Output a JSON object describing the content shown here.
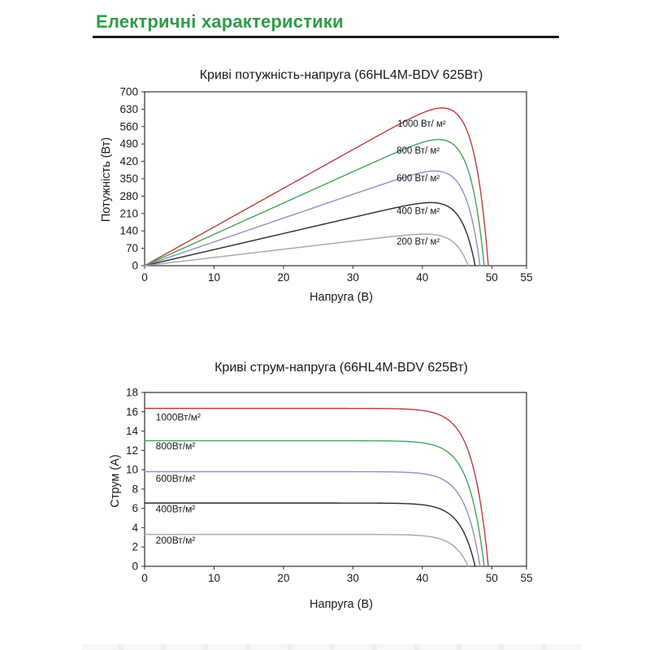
{
  "header": {
    "title": "Електричні характеристики",
    "accent_color": "#2e9c48",
    "rule_color": "#1c1c1c"
  },
  "chart_data": [
    {
      "type": "line",
      "title": "Криві потужність-напруга (66HL4M-BDV 625Вт)",
      "xlabel": "Напруга (В)",
      "ylabel": "Потужність (Вт)",
      "xlim": [
        0,
        55
      ],
      "ylim": [
        0,
        700
      ],
      "xticks": [
        0,
        10,
        20,
        30,
        40,
        50,
        55
      ],
      "yticks": [
        0,
        70,
        140,
        210,
        280,
        350,
        420,
        490,
        560,
        630,
        700
      ],
      "grid": false,
      "legend": "inline-labels",
      "quantity": "power",
      "series": [
        {
          "name": "1000 Вт/ м²",
          "irradiance": 1000,
          "color": "#bc3c3e",
          "isc": 16.4,
          "voc": 49.5,
          "pmax": 635,
          "label_at": {
            "x": 39.9,
            "y": 560
          }
        },
        {
          "name": "800 Вт/ м²",
          "irradiance": 800,
          "color": "#43a45a",
          "isc": 13.1,
          "voc": 48.9,
          "pmax": 508,
          "label_at": {
            "x": 39.4,
            "y": 452
          }
        },
        {
          "name": "600 Вт/ м²",
          "irradiance": 600,
          "color": "#8c91c3",
          "isc": 9.8,
          "voc": 48.3,
          "pmax": 381,
          "label_at": {
            "x": 39.4,
            "y": 340
          }
        },
        {
          "name": "400 Вт/ м²",
          "irradiance": 400,
          "color": "#2b2b2b",
          "isc": 6.55,
          "voc": 47.6,
          "pmax": 254,
          "label_at": {
            "x": 39.4,
            "y": 207
          }
        },
        {
          "name": "200 Вт/ м²",
          "irradiance": 200,
          "color": "#a6a6a6",
          "isc": 3.3,
          "voc": 46.6,
          "pmax": 127,
          "label_at": {
            "x": 39.4,
            "y": 85
          }
        }
      ]
    },
    {
      "type": "line",
      "title": "Криві струм-напруга (66HL4M-BDV 625Вт)",
      "xlabel": "Напруга (В)",
      "ylabel": "Струм (А)",
      "xlim": [
        0,
        55
      ],
      "ylim": [
        0,
        18
      ],
      "xticks": [
        0,
        10,
        20,
        30,
        40,
        50,
        55
      ],
      "yticks": [
        0,
        2,
        4,
        6,
        8,
        10,
        12,
        14,
        16,
        18
      ],
      "grid": false,
      "legend": "inline-labels",
      "quantity": "current",
      "series": [
        {
          "name": "1000Вт/м²",
          "irradiance": 1000,
          "color": "#bc3c3e",
          "isc": 16.35,
          "voc": 49.5,
          "label_at": {
            "x": 1.6,
            "y": 15.1
          }
        },
        {
          "name": "800Вт/м²",
          "irradiance": 800,
          "color": "#43a45a",
          "isc": 13.0,
          "voc": 48.9,
          "label_at": {
            "x": 1.6,
            "y": 12.1
          }
        },
        {
          "name": "600Вт/м²",
          "irradiance": 600,
          "color": "#8c91c3",
          "isc": 9.8,
          "voc": 48.3,
          "label_at": {
            "x": 1.6,
            "y": 8.75
          }
        },
        {
          "name": "400Вт/м²",
          "irradiance": 400,
          "color": "#2b2b2b",
          "isc": 6.55,
          "voc": 47.6,
          "label_at": {
            "x": 1.6,
            "y": 5.6
          }
        },
        {
          "name": "200Вт/м²",
          "irradiance": 200,
          "color": "#a6a6a6",
          "isc": 3.3,
          "voc": 46.6,
          "label_at": {
            "x": 1.6,
            "y": 2.35
          }
        }
      ]
    }
  ]
}
